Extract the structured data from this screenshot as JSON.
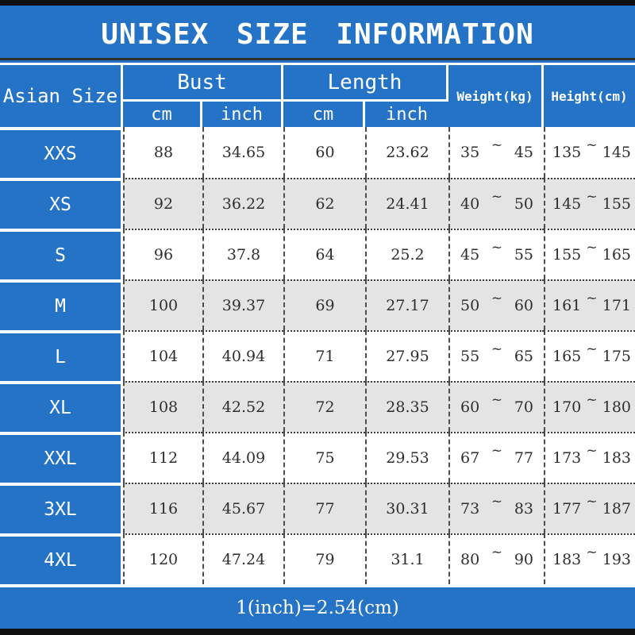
{
  "title": "UNISEX SIZE INFORMATION",
  "footer_note": "1(inch)=2.54(cm)",
  "tilde": "~",
  "table_header": {
    "asian_size": "Asian Size",
    "bust": "Bust",
    "length": "Length",
    "weight": "Weight(kg)",
    "height": "Height(cm)",
    "unit_cm": "cm",
    "unit_inch": "inch"
  },
  "colors": {
    "blue": "#2573c6",
    "alt_row_gray": "#e4e4e4",
    "bar_black": "#101010",
    "text_dark": "#2e2e2e"
  },
  "chart_data": {
    "type": "table",
    "title": "UNISEX SIZE INFORMATION",
    "footnote": "1(inch)=2.54(cm)",
    "columns": [
      "Asian Size",
      "Bust cm",
      "Bust inch",
      "Length cm",
      "Length inch",
      "Weight(kg)",
      "Height(cm)"
    ],
    "rows": [
      {
        "size": "XXS",
        "bust_cm": "88",
        "bust_inch": "34.65",
        "length_cm": "60",
        "length_inch": "23.62",
        "weight_min": "35",
        "weight_max": "45",
        "height_min": "135",
        "height_max": "145"
      },
      {
        "size": "XS",
        "bust_cm": "92",
        "bust_inch": "36.22",
        "length_cm": "62",
        "length_inch": "24.41",
        "weight_min": "40",
        "weight_max": "50",
        "height_min": "145",
        "height_max": "155"
      },
      {
        "size": "S",
        "bust_cm": "96",
        "bust_inch": "37.8",
        "length_cm": "64",
        "length_inch": "25.2",
        "weight_min": "45",
        "weight_max": "55",
        "height_min": "155",
        "height_max": "165"
      },
      {
        "size": "M",
        "bust_cm": "100",
        "bust_inch": "39.37",
        "length_cm": "69",
        "length_inch": "27.17",
        "weight_min": "50",
        "weight_max": "60",
        "height_min": "161",
        "height_max": "171"
      },
      {
        "size": "L",
        "bust_cm": "104",
        "bust_inch": "40.94",
        "length_cm": "71",
        "length_inch": "27.95",
        "weight_min": "55",
        "weight_max": "65",
        "height_min": "165",
        "height_max": "175"
      },
      {
        "size": "XL",
        "bust_cm": "108",
        "bust_inch": "42.52",
        "length_cm": "72",
        "length_inch": "28.35",
        "weight_min": "60",
        "weight_max": "70",
        "height_min": "170",
        "height_max": "180"
      },
      {
        "size": "XXL",
        "bust_cm": "112",
        "bust_inch": "44.09",
        "length_cm": "75",
        "length_inch": "29.53",
        "weight_min": "67",
        "weight_max": "77",
        "height_min": "173",
        "height_max": "183"
      },
      {
        "size": "3XL",
        "bust_cm": "116",
        "bust_inch": "45.67",
        "length_cm": "77",
        "length_inch": "30.31",
        "weight_min": "73",
        "weight_max": "83",
        "height_min": "177",
        "height_max": "187"
      },
      {
        "size": "4XL",
        "bust_cm": "120",
        "bust_inch": "47.24",
        "length_cm": "79",
        "length_inch": "31.1",
        "weight_min": "80",
        "weight_max": "90",
        "height_min": "183",
        "height_max": "193"
      }
    ]
  }
}
